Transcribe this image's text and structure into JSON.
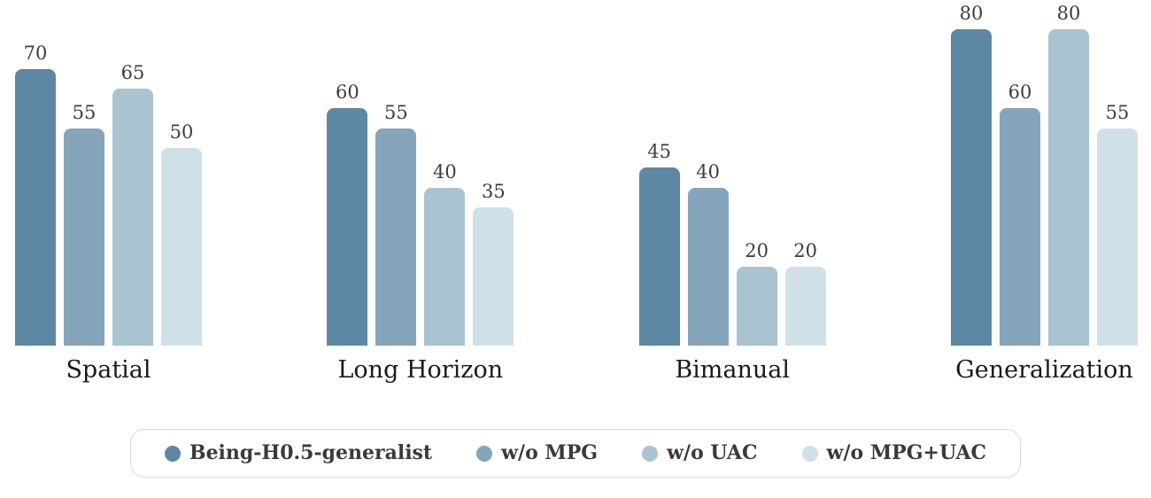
{
  "chart_data": {
    "type": "bar",
    "title": "",
    "xlabel": "",
    "ylabel": "",
    "categories": [
      "Spatial",
      "Long Horizon",
      "Bimanual",
      "Generalization"
    ],
    "series": [
      {
        "name": "Being-H0.5-generalist",
        "color": "#5e87a3",
        "values": [
          70,
          60,
          45,
          80
        ]
      },
      {
        "name": "w/o MPG",
        "color": "#86a5bb",
        "values": [
          55,
          55,
          40,
          60
        ]
      },
      {
        "name": "w/o UAC",
        "color": "#a9c3d1",
        "values": [
          65,
          40,
          20,
          80
        ]
      },
      {
        "name": "w/o MPG+UAC",
        "color": "#cfe0e9",
        "values": [
          50,
          35,
          20,
          55
        ]
      }
    ],
    "ylim": [
      0,
      87
    ],
    "grid": false,
    "axes_visible": false,
    "value_labels": true,
    "legend_position": "bottom"
  },
  "style": {
    "background": "#ffffff",
    "value_label_color": "#3d3d3d",
    "category_label_color": "#1a1a1a",
    "legend_text_color": "#3a3a3a",
    "legend_border_color": "#d9d9d9"
  }
}
